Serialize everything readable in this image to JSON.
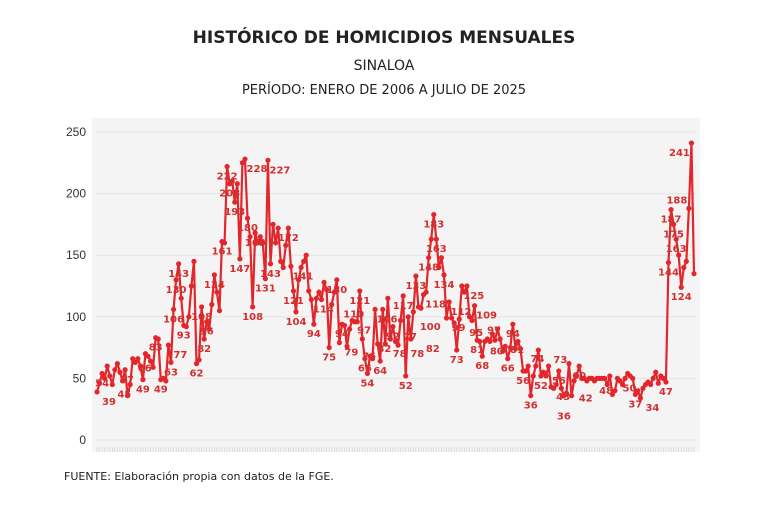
{
  "header": {
    "title": "HISTÓRICO DE HOMICIDIOS MENSUALES",
    "subtitle": "SINALOA",
    "period": "PERÍODO: ENERO DE 2006 A JULIO DE 2025"
  },
  "footer": {
    "source": "FUENTE: Elaboración propia con datos de la FGE."
  },
  "chart_data": {
    "type": "line",
    "title": "HISTÓRICO DE HOMICIDIOS MENSUALES",
    "xlabel": "",
    "ylabel": "",
    "ylim": [
      0,
      250
    ],
    "yticks": [
      "0",
      "50",
      "100",
      "150",
      "200",
      "250"
    ],
    "grid": true,
    "color": "#e3262b",
    "background": "#f4f4f4",
    "values": [
      39,
      46,
      54,
      50,
      60,
      52,
      45,
      57,
      62,
      55,
      48,
      57,
      36,
      45,
      66,
      63,
      66,
      60,
      49,
      70,
      68,
      64,
      59,
      83,
      82,
      49,
      50,
      48,
      77,
      63,
      106,
      130,
      143,
      115,
      93,
      92,
      100,
      125,
      145,
      62,
      65,
      108,
      82,
      96,
      90,
      110,
      134,
      120,
      105,
      161,
      160,
      222,
      208,
      210,
      193,
      208,
      147,
      225,
      228,
      180,
      165,
      108,
      168,
      160,
      165,
      160,
      131,
      227,
      143,
      175,
      160,
      172,
      145,
      140,
      158,
      172,
      141,
      121,
      104,
      130,
      140,
      145,
      150,
      121,
      114,
      94,
      115,
      120,
      114,
      128,
      122,
      75,
      110,
      120,
      130,
      79,
      94,
      93,
      76,
      90,
      97,
      96,
      96,
      121,
      82,
      66,
      54,
      68,
      66,
      106,
      78,
      64,
      106,
      78,
      115,
      82,
      92,
      80,
      77,
      97,
      117,
      52,
      100,
      82,
      104,
      133,
      108,
      107,
      118,
      120,
      148,
      163,
      183,
      163,
      140,
      148,
      134,
      99,
      112,
      99,
      95,
      73,
      98,
      125,
      120,
      125,
      100,
      97,
      109,
      81,
      80,
      68,
      80,
      82,
      80,
      86,
      81,
      90,
      82,
      72,
      76,
      66,
      75,
      94,
      74,
      80,
      74,
      56,
      56,
      60,
      36,
      52,
      60,
      73,
      52,
      55,
      52,
      60,
      43,
      42,
      45,
      56,
      42,
      36,
      38,
      62,
      36,
      48,
      52,
      60,
      50,
      50,
      48,
      50,
      50,
      48,
      50,
      50,
      50,
      50,
      45,
      52,
      37,
      40,
      50,
      48,
      45,
      50,
      54,
      52,
      50,
      37,
      40,
      34,
      42,
      45,
      47,
      45,
      50,
      55,
      46,
      52,
      50,
      47,
      144,
      187,
      175,
      163,
      150,
      124,
      140,
      145,
      188,
      241,
      135
    ],
    "labeled_indices": [
      0,
      2,
      6,
      7,
      14,
      18,
      23,
      25,
      28,
      29,
      30,
      31,
      32,
      34,
      39,
      41,
      42,
      43,
      46,
      49,
      51,
      52,
      54,
      56,
      58,
      59,
      61,
      62,
      66,
      67,
      68,
      75,
      76,
      77,
      78,
      84,
      85,
      91,
      92,
      94,
      95,
      96,
      98,
      100,
      103,
      104,
      105,
      106,
      109,
      110,
      111,
      113,
      116,
      118,
      120,
      121,
      122,
      123,
      125,
      128,
      130,
      132,
      133,
      136,
      137,
      138,
      140,
      141,
      143,
      147,
      148,
      149,
      151,
      152,
      156,
      161,
      163,
      164,
      167,
      170,
      173,
      174,
      178,
      179,
      181,
      183,
      187,
      189,
      204,
      211,
      213,
      223,
      224,
      225,
      226,
      227,
      229,
      232,
      233
    ]
  }
}
